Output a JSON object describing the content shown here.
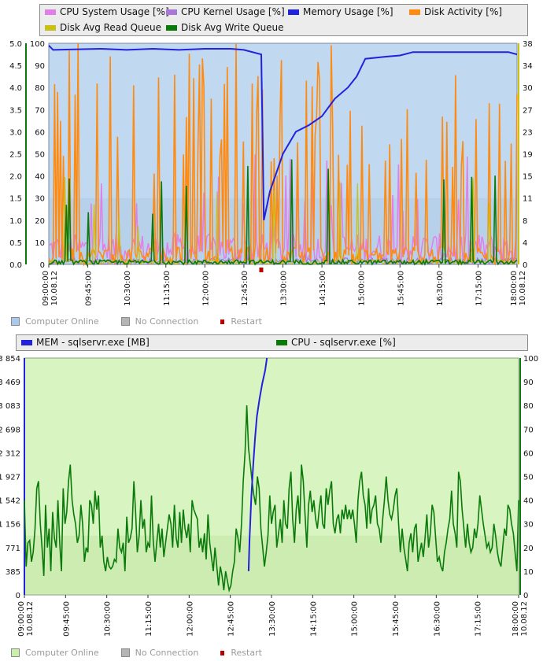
{
  "chart_data": [
    {
      "type": "line",
      "legend": [
        {
          "name": "CPU System Usage [%]",
          "color": "#e07fe8"
        },
        {
          "name": "CPU Kernel Usage [%]",
          "color": "#a877d8"
        },
        {
          "name": "Memory Usage [%]",
          "color": "#2222dd"
        },
        {
          "name": "Disk Activity [%]",
          "color": "#ff8a10"
        },
        {
          "name": "Disk Avg Read Queue",
          "color": "#c8c012"
        },
        {
          "name": "Disk Avg Write Queue",
          "color": "#0a7a0a"
        }
      ],
      "x_ticks": [
        "10.08.12 09:00:00",
        "09:45:00",
        "10:30:00",
        "11:15:00",
        "12:00:00",
        "12:45:00",
        "13:30:00",
        "14:15:00",
        "15:00:00",
        "15:45:00",
        "16:30:00",
        "17:15:00",
        "10.08.12 18:00:00"
      ],
      "x_range": [
        "09:00",
        "18:00"
      ],
      "left_axis": {
        "ticks": [
          "0.0",
          "0.5",
          "1.0",
          "1.5",
          "2.0",
          "2.5",
          "3.0",
          "3.5",
          "4.0",
          "4.5",
          "5.0"
        ],
        "ylim": [
          0,
          5
        ],
        "color": "#0a7a0a"
      },
      "mid_axis": {
        "ticks": [
          "0",
          "10",
          "20",
          "30",
          "40",
          "50",
          "60",
          "70",
          "80",
          "90",
          "100"
        ],
        "ylim": [
          0,
          100
        ]
      },
      "right_axis": {
        "ticks": [
          "0",
          "4",
          "8",
          "11",
          "15",
          "19",
          "23",
          "27",
          "30",
          "34",
          "38"
        ],
        "ylim": [
          0,
          38
        ],
        "color": "#c8c012"
      },
      "restart_marker_time": "13:05",
      "memory_series": {
        "name": "Memory Usage [%]",
        "x": [
          "09:00",
          "09:05",
          "10:00",
          "10:30",
          "11:00",
          "11:30",
          "12:00",
          "12:30",
          "12:45",
          "13:05",
          "13:08",
          "13:15",
          "13:30",
          "13:45",
          "14:00",
          "14:15",
          "14:30",
          "14:45",
          "14:55",
          "15:00",
          "15:05",
          "15:30",
          "15:45",
          "16:00",
          "16:30",
          "17:00",
          "17:30",
          "17:50",
          "18:00"
        ],
        "values": [
          99,
          97,
          97.5,
          97,
          97.5,
          97,
          97.5,
          97.5,
          97,
          95,
          20,
          33,
          50,
          60,
          63,
          67,
          75,
          80,
          85,
          89,
          93,
          94,
          94.5,
          96,
          96,
          96,
          96,
          96,
          95
        ]
      }
    },
    {
      "type": "line",
      "legend": [
        {
          "name": "MEM - sqlservr.exe [MB]",
          "color": "#2222dd"
        },
        {
          "name": "CPU - sqlservr.exe [%]",
          "color": "#0a7a0a"
        }
      ],
      "x_ticks": [
        "10.08.12 09:00:00",
        "09:45:00",
        "10:30:00",
        "11:15:00",
        "12:00:00",
        "12:45:00",
        "13:30:00",
        "14:15:00",
        "15:00:00",
        "15:45:00",
        "16:30:00",
        "17:15:00",
        "10.08.12 18:00:00"
      ],
      "x_range": [
        "09:00",
        "18:00"
      ],
      "left_axis": {
        "ticks": [
          "0",
          "385",
          "771",
          "1 156",
          "1 542",
          "1 927",
          "2 312",
          "2 698",
          "3 083",
          "3 469",
          "3 854"
        ],
        "ylim": [
          0,
          3854
        ],
        "color": "#2222dd"
      },
      "right_axis": {
        "ticks": [
          "0",
          "10",
          "20",
          "30",
          "40",
          "50",
          "60",
          "70",
          "80",
          "90",
          "100"
        ],
        "ylim": [
          0,
          100
        ],
        "color": "#0a7a0a"
      },
      "mem_series": {
        "name": "MEM - sqlservr.exe [MB]",
        "x": [
          "13:05",
          "13:06",
          "13:08",
          "13:10",
          "13:12",
          "13:14",
          "13:17",
          "13:20",
          "13:23",
          "13:25"
        ],
        "values": [
          385,
          900,
          1600,
          2100,
          2550,
          2900,
          3200,
          3450,
          3650,
          3854
        ]
      },
      "cpu_series": {
        "name": "CPU - sqlservr.exe [%]",
        "x_range": [
          "09:00",
          "18:00"
        ],
        "values": [
          40,
          12,
          22,
          23,
          14,
          18,
          28,
          45,
          48,
          30,
          20,
          8,
          38,
          20,
          28,
          10,
          35,
          24,
          20,
          40,
          22,
          10,
          45,
          30,
          35,
          48,
          55,
          40,
          34,
          30,
          22,
          25,
          38,
          30,
          14,
          20,
          18,
          40,
          38,
          30,
          44,
          36,
          42,
          20,
          25,
          14,
          10,
          16,
          12,
          11,
          12,
          15,
          14,
          28,
          20,
          18,
          22,
          10,
          33,
          22,
          24,
          28,
          48,
          35,
          18,
          25,
          40,
          28,
          32,
          18,
          22,
          20,
          42,
          23,
          14,
          22,
          30,
          20,
          28,
          16,
          22,
          28,
          34,
          30,
          20,
          38,
          24,
          20,
          35,
          22,
          36,
          28,
          24,
          30,
          18,
          40,
          36,
          34,
          32,
          20,
          24,
          18,
          26,
          15,
          34,
          22,
          16,
          10,
          20,
          12,
          4,
          12,
          8,
          2,
          10,
          6,
          2,
          4,
          10,
          14,
          28,
          24,
          18,
          30,
          48,
          60,
          80,
          62,
          55,
          48,
          42,
          38,
          50,
          45,
          28,
          20,
          12,
          18,
          25,
          42,
          30,
          35,
          38,
          20,
          26,
          32,
          22,
          40,
          30,
          28,
          45,
          52,
          32,
          22,
          36,
          42,
          30,
          55,
          48,
          34,
          20,
          38,
          44,
          35,
          40,
          32,
          28,
          36,
          42,
          30,
          28,
          45,
          38,
          44,
          48,
          30,
          26,
          32,
          34,
          26,
          36,
          32,
          38,
          32,
          36,
          32,
          36,
          30,
          22,
          40,
          48,
          52,
          42,
          38,
          28,
          45,
          30,
          36,
          38,
          42,
          30,
          28,
          22,
          32,
          40,
          50,
          40,
          34,
          32,
          36,
          42,
          45,
          30,
          18,
          28,
          20,
          15,
          10,
          22,
          26,
          18,
          28,
          30,
          14,
          18,
          22,
          16,
          24,
          34,
          20,
          26,
          38,
          35,
          24,
          14,
          16,
          12,
          10,
          18,
          22,
          28,
          32,
          44,
          30,
          26,
          20,
          52,
          48,
          36,
          28,
          20,
          30,
          22,
          18,
          20,
          28,
          24,
          30,
          42,
          36,
          30,
          25,
          20,
          22,
          18,
          20,
          30,
          25,
          18,
          14,
          12,
          20,
          28,
          25,
          38,
          36,
          30,
          26,
          18,
          10,
          40
        ]
      },
      "status_legend": [
        "Computer Online",
        "No Connection",
        "Restart"
      ]
    }
  ],
  "status_legend_top": [
    "Computer Online",
    "No Connection",
    "Restart"
  ],
  "colors": {
    "top_bg": "#c0d8f0",
    "bottom_bg": "#d8f4c0",
    "online_top": "#a8c8ec",
    "online_bottom": "#c8f0a8",
    "noconn": "#b4b4b4",
    "restart": "#b80000"
  }
}
